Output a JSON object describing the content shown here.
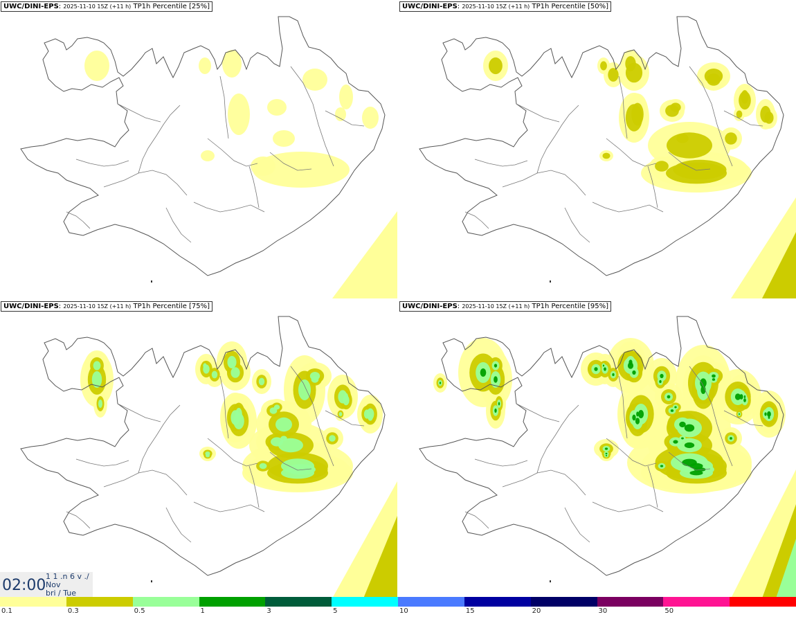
{
  "panels": [
    {
      "model": "UWC/DINI-EPS",
      "run": "2025-11-10 15Z (+11 h)",
      "field": "TP1h Percentile [25%]",
      "intensity": 0
    },
    {
      "model": "UWC/DINI-EPS",
      "run": "2025-11-10 15Z (+11 h)",
      "field": "TP1h Percentile [50%]",
      "intensity": 1
    },
    {
      "model": "UWC/DINI-EPS",
      "run": "2025-11-10 15Z (+11 h)",
      "field": "TP1h Percentile [75%]",
      "intensity": 2
    },
    {
      "model": "UWC/DINI-EPS",
      "run": "2025-11-10 15Z (+11 h)",
      "field": "TP1h Percentile [95%]",
      "intensity": 3
    }
  ],
  "valid_time": {
    "time": "02:00",
    "line1": "1 1 .n 6 v ./",
    "line2": "Nov",
    "line3": "bri / Tue"
  },
  "legend": {
    "colors": [
      "#ffff99",
      "#cccc00",
      "#99ff99",
      "#00a000",
      "#005c3a",
      "#00ffff",
      "#4a7aff",
      "#0000a0",
      "#000066",
      "#7a0060",
      "#ff1493",
      "#ff0000"
    ],
    "labels": [
      "0.1",
      "0.3",
      "0.5",
      "1",
      "3",
      "5",
      "10",
      "15",
      "20",
      "30",
      "50"
    ]
  }
}
